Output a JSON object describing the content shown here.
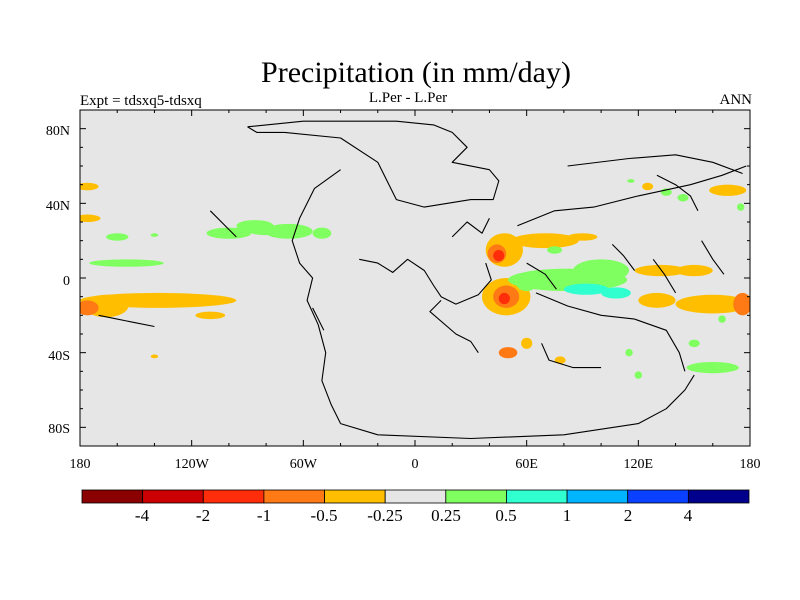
{
  "chart_data": {
    "type": "heatmap",
    "title": "Precipitation (in mm/day)",
    "subtitle_left": "Expt = tdsxq5-tdsxq",
    "subtitle_center": "L.Per - L.Per",
    "subtitle_right": "ANN",
    "x_ticks": [
      "180",
      "120W",
      "60W",
      "0",
      "60E",
      "120E",
      "180"
    ],
    "y_ticks": [
      "80N",
      "40N",
      "0",
      "40S",
      "80S"
    ],
    "xlim": [
      -180,
      180
    ],
    "ylim": [
      -90,
      90
    ],
    "colorbar": {
      "colors": [
        "#8b0000",
        "#cc0000",
        "#ff2d0a",
        "#ff7a14",
        "#ffbf00",
        "#e6e6e6",
        "#80ff60",
        "#30ffd0",
        "#00b4ff",
        "#0a40ff",
        "#00008c"
      ],
      "labels": [
        "-4",
        "-2",
        "-1",
        "-0.5",
        "-0.25",
        "0.25",
        "0.5",
        "1",
        "2",
        "4"
      ]
    },
    "anomaly_regions": [
      {
        "lon": -176,
        "lat": 49,
        "rlon": 6,
        "rlat": 2,
        "level": "-0.25"
      },
      {
        "lon": -176,
        "lat": 32,
        "rlon": 7,
        "rlat": 2,
        "level": "-0.25"
      },
      {
        "lon": -160,
        "lat": 22,
        "rlon": 6,
        "rlat": 2,
        "level": "0.25"
      },
      {
        "lon": -140,
        "lat": 23,
        "rlon": 2,
        "rlat": 1,
        "level": "0.25"
      },
      {
        "lon": -100,
        "lat": 24,
        "rlon": 12,
        "rlat": 3,
        "level": "0.25"
      },
      {
        "lon": -86,
        "lat": 28,
        "rlon": 10,
        "rlat": 3,
        "level": "0.25"
      },
      {
        "lon": -81,
        "lat": 25,
        "rlon": 8,
        "rlat": 2,
        "level": "0.25"
      },
      {
        "lon": -155,
        "lat": 8,
        "rlon": 20,
        "rlat": 2,
        "level": "0.25"
      },
      {
        "lon": -68,
        "lat": 25,
        "rlon": 13,
        "rlat": 4,
        "level": "0.25"
      },
      {
        "lon": -50,
        "lat": 24,
        "rlon": 5,
        "rlat": 3,
        "level": "0.25"
      },
      {
        "lon": -138,
        "lat": -12,
        "rlon": 42,
        "rlat": 4,
        "level": "-0.25"
      },
      {
        "lon": -166,
        "lat": -15,
        "rlon": 12,
        "rlat": 6,
        "level": "-0.25"
      },
      {
        "lon": -176,
        "lat": -16,
        "rlon": 6,
        "rlat": 4,
        "level": "-0.5"
      },
      {
        "lon": -110,
        "lat": -20,
        "rlon": 8,
        "rlat": 2,
        "level": "-0.25"
      },
      {
        "lon": -140,
        "lat": -42,
        "rlon": 2,
        "rlat": 1,
        "level": "-0.25"
      },
      {
        "lon": 48,
        "lat": 15,
        "rlon": 10,
        "rlat": 9,
        "level": "-0.25"
      },
      {
        "lon": 44,
        "lat": 13,
        "rlon": 5,
        "rlat": 5,
        "level": "-0.5"
      },
      {
        "lon": 45,
        "lat": 12,
        "rlon": 3,
        "rlat": 3,
        "level": "-1"
      },
      {
        "lon": 70,
        "lat": 20,
        "rlon": 18,
        "rlat": 4,
        "level": "-0.25"
      },
      {
        "lon": 90,
        "lat": 22,
        "rlon": 8,
        "rlat": 2,
        "level": "-0.25"
      },
      {
        "lon": 75,
        "lat": 15,
        "rlon": 4,
        "rlat": 2,
        "level": "0.25"
      },
      {
        "lon": 49,
        "lat": -10,
        "rlon": 13,
        "rlat": 10,
        "level": "-0.25"
      },
      {
        "lon": 49,
        "lat": -10,
        "rlon": 7,
        "rlat": 6,
        "level": "-0.5"
      },
      {
        "lon": 48,
        "lat": -11,
        "rlon": 3,
        "rlat": 3,
        "level": "-1"
      },
      {
        "lon": 60,
        "lat": -35,
        "rlon": 3,
        "rlat": 3,
        "level": "-0.25"
      },
      {
        "lon": 50,
        "lat": -40,
        "rlon": 5,
        "rlat": 3,
        "level": "-0.5"
      },
      {
        "lon": 78,
        "lat": -44,
        "rlon": 3,
        "rlat": 2,
        "level": "-0.25"
      },
      {
        "lon": 82,
        "lat": -1,
        "rlon": 32,
        "rlat": 6,
        "level": "0.25"
      },
      {
        "lon": 100,
        "lat": 4,
        "rlon": 15,
        "rlat": 6,
        "level": "0.25"
      },
      {
        "lon": 60,
        "lat": -2,
        "rlon": 6,
        "rlat": 5,
        "level": "0.25"
      },
      {
        "lon": 92,
        "lat": -6,
        "rlon": 12,
        "rlat": 3,
        "level": "0.5"
      },
      {
        "lon": 108,
        "lat": -8,
        "rlon": 8,
        "rlat": 3,
        "level": "0.5"
      },
      {
        "lon": 132,
        "lat": 4,
        "rlon": 14,
        "rlat": 3,
        "level": "-0.25"
      },
      {
        "lon": 150,
        "lat": 4,
        "rlon": 10,
        "rlat": 3,
        "level": "-0.25"
      },
      {
        "lon": 160,
        "lat": -14,
        "rlon": 20,
        "rlat": 5,
        "level": "-0.25"
      },
      {
        "lon": 130,
        "lat": -12,
        "rlon": 10,
        "rlat": 4,
        "level": "-0.25"
      },
      {
        "lon": 176,
        "lat": -14,
        "rlon": 5,
        "rlat": 6,
        "level": "-0.5"
      },
      {
        "lon": 168,
        "lat": 47,
        "rlon": 10,
        "rlat": 3,
        "level": "-0.25"
      },
      {
        "lon": 135,
        "lat": 46,
        "rlon": 3,
        "rlat": 2,
        "level": "0.25"
      },
      {
        "lon": 116,
        "lat": 52,
        "rlon": 2,
        "rlat": 1,
        "level": "0.25"
      },
      {
        "lon": 144,
        "lat": 43,
        "rlon": 3,
        "rlat": 2,
        "level": "0.25"
      },
      {
        "lon": 175,
        "lat": 38,
        "rlon": 2,
        "rlat": 2,
        "level": "0.25"
      },
      {
        "lon": 125,
        "lat": 49,
        "rlon": 3,
        "rlat": 2,
        "level": "-0.25"
      },
      {
        "lon": 150,
        "lat": -35,
        "rlon": 3,
        "rlat": 2,
        "level": "0.25"
      },
      {
        "lon": 160,
        "lat": -48,
        "rlon": 14,
        "rlat": 3,
        "level": "0.25"
      },
      {
        "lon": 115,
        "lat": -40,
        "rlon": 2,
        "rlat": 2,
        "level": "0.25"
      },
      {
        "lon": 120,
        "lat": -52,
        "rlon": 2,
        "rlat": 2,
        "level": "0.25"
      },
      {
        "lon": 165,
        "lat": -22,
        "rlon": 2,
        "rlat": 2,
        "level": "0.25"
      }
    ]
  },
  "map_outlines": [
    [
      [
        -90,
        81
      ],
      [
        -60,
        84
      ],
      [
        -10,
        84
      ],
      [
        10,
        82
      ],
      [
        20,
        78
      ],
      [
        28,
        70
      ],
      [
        20,
        62
      ],
      [
        40,
        58
      ],
      [
        45,
        52
      ],
      [
        42,
        42
      ],
      [
        30,
        42
      ],
      [
        5,
        38
      ],
      [
        -10,
        42
      ],
      [
        -20,
        62
      ],
      [
        -40,
        75
      ],
      [
        -70,
        78
      ],
      [
        -85,
        78
      ],
      [
        -90,
        81
      ]
    ],
    [
      [
        -40,
        58
      ],
      [
        -54,
        48
      ],
      [
        -62,
        32
      ],
      [
        -66,
        20
      ],
      [
        -62,
        8
      ],
      [
        -55,
        0
      ],
      [
        -58,
        -12
      ],
      [
        -52,
        -25
      ],
      [
        -48,
        -40
      ],
      [
        -50,
        -55
      ],
      [
        -45,
        -68
      ],
      [
        -40,
        -78
      ]
    ],
    [
      [
        -40,
        -78
      ],
      [
        -20,
        -84
      ],
      [
        30,
        -86
      ],
      [
        80,
        -84
      ],
      [
        120,
        -78
      ],
      [
        135,
        -70
      ],
      [
        145,
        -60
      ],
      [
        150,
        -52
      ]
    ],
    [
      [
        -30,
        10
      ],
      [
        -20,
        8
      ],
      [
        -12,
        3
      ],
      [
        -4,
        10
      ],
      [
        5,
        4
      ],
      [
        10,
        -4
      ],
      [
        14,
        -10
      ],
      [
        22,
        -14
      ],
      [
        34,
        -9
      ],
      [
        41,
        -1
      ],
      [
        38,
        8
      ]
    ],
    [
      [
        14,
        -12
      ],
      [
        8,
        -18
      ],
      [
        22,
        -30
      ],
      [
        30,
        -34
      ],
      [
        34,
        -40
      ]
    ],
    [
      [
        55,
        28
      ],
      [
        75,
        36
      ],
      [
        96,
        38
      ],
      [
        120,
        44
      ],
      [
        148,
        50
      ],
      [
        165,
        55
      ],
      [
        178,
        60
      ]
    ],
    [
      [
        82,
        60
      ],
      [
        115,
        64
      ],
      [
        140,
        66
      ],
      [
        160,
        62
      ],
      [
        176,
        56
      ]
    ],
    [
      [
        65,
        -8
      ],
      [
        82,
        -15
      ],
      [
        100,
        -20
      ],
      [
        118,
        -22
      ],
      [
        135,
        -28
      ],
      [
        142,
        -40
      ],
      [
        145,
        -50
      ]
    ],
    [
      [
        68,
        -35
      ],
      [
        72,
        -44
      ],
      [
        85,
        -48
      ],
      [
        100,
        -48
      ]
    ],
    [
      [
        -110,
        36
      ],
      [
        -100,
        26
      ],
      [
        -96,
        22
      ]
    ],
    [
      [
        -170,
        -20
      ],
      [
        -160,
        -22
      ],
      [
        -150,
        -24
      ],
      [
        -140,
        -26
      ]
    ],
    [
      [
        -55,
        -16
      ],
      [
        -49,
        -28
      ]
    ],
    [
      [
        20,
        22
      ],
      [
        28,
        30
      ],
      [
        36,
        24
      ],
      [
        40,
        32
      ]
    ],
    [
      [
        60,
        8
      ],
      [
        70,
        2
      ],
      [
        76,
        -6
      ]
    ],
    [
      [
        106,
        18
      ],
      [
        112,
        12
      ],
      [
        118,
        4
      ]
    ],
    [
      [
        128,
        10
      ],
      [
        134,
        2
      ],
      [
        140,
        -8
      ]
    ],
    [
      [
        154,
        20
      ],
      [
        160,
        10
      ],
      [
        166,
        2
      ]
    ],
    [
      [
        130,
        55
      ],
      [
        140,
        50
      ],
      [
        148,
        44
      ],
      [
        152,
        36
      ]
    ]
  ]
}
